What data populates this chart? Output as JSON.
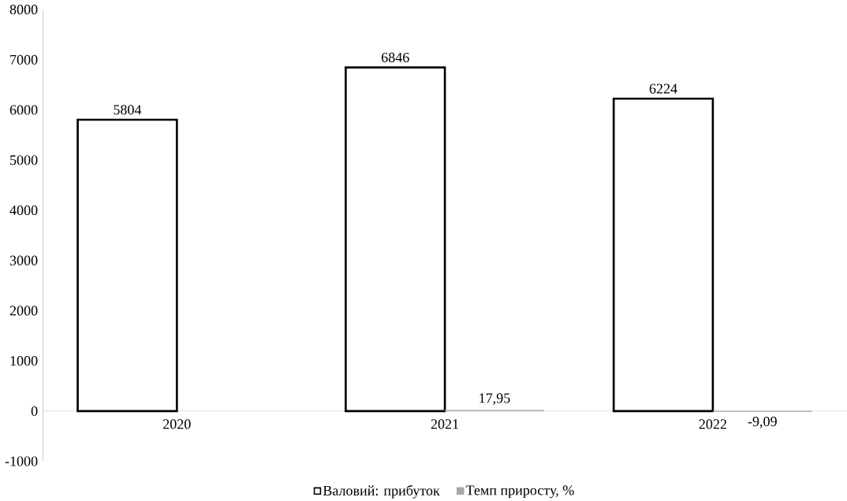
{
  "chart_data": {
    "type": "bar",
    "categories": [
      "2020",
      "2021",
      "2022"
    ],
    "series": [
      {
        "name": "Валовий: прибуток",
        "color": "#ffffff",
        "values": [
          5804,
          6846,
          6224
        ],
        "value_labels": [
          "5804",
          "6846",
          "6224"
        ]
      },
      {
        "name": "Темп приросту, %",
        "color": "#a6a6a6",
        "values": [
          null,
          17.95,
          -9.09
        ],
        "value_labels": [
          null,
          "17,95",
          "-9,09"
        ]
      }
    ],
    "ylim": [
      -1000,
      8000
    ],
    "yticks": [
      -1000,
      0,
      1000,
      2000,
      3000,
      4000,
      5000,
      6000,
      7000,
      8000
    ],
    "legend": "bottom"
  }
}
